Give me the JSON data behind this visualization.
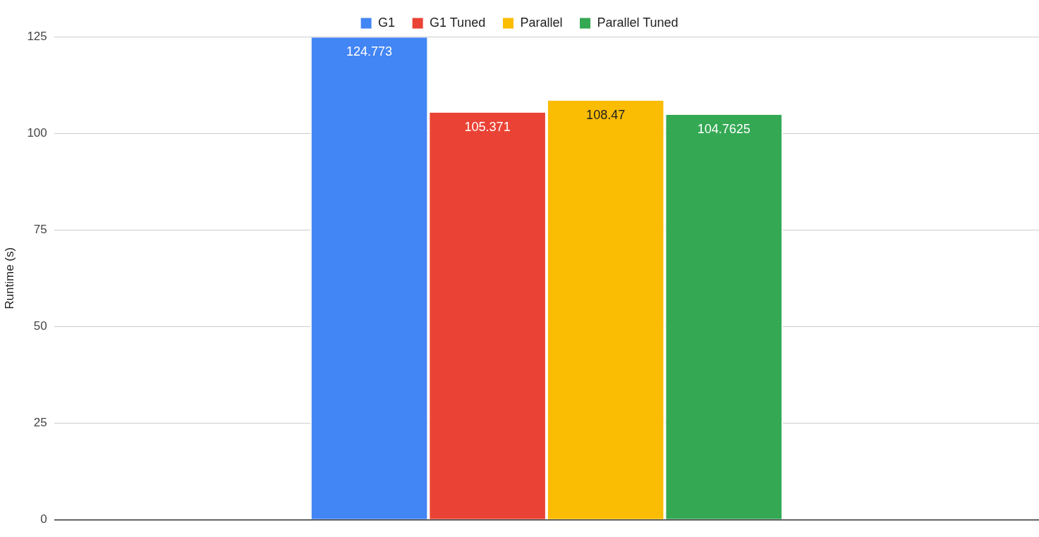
{
  "chart_data": {
    "type": "bar",
    "ylabel": "Runtime (s)",
    "categories": [
      null
    ],
    "series": [
      {
        "name": "G1",
        "color": "#4285f4",
        "values": [
          124.773
        ]
      },
      {
        "name": "G1 Tuned",
        "color": "#ea4335",
        "values": [
          105.371
        ]
      },
      {
        "name": "Parallel",
        "color": "#fbbc04",
        "values": [
          108.47
        ]
      },
      {
        "name": "Parallel Tuned",
        "color": "#34a853",
        "values": [
          104.7625
        ]
      }
    ],
    "ylim": [
      0,
      125
    ],
    "yticks": [
      0,
      25,
      50,
      75,
      100,
      125
    ],
    "grid": "y",
    "legend": "top",
    "data_labels": true
  }
}
